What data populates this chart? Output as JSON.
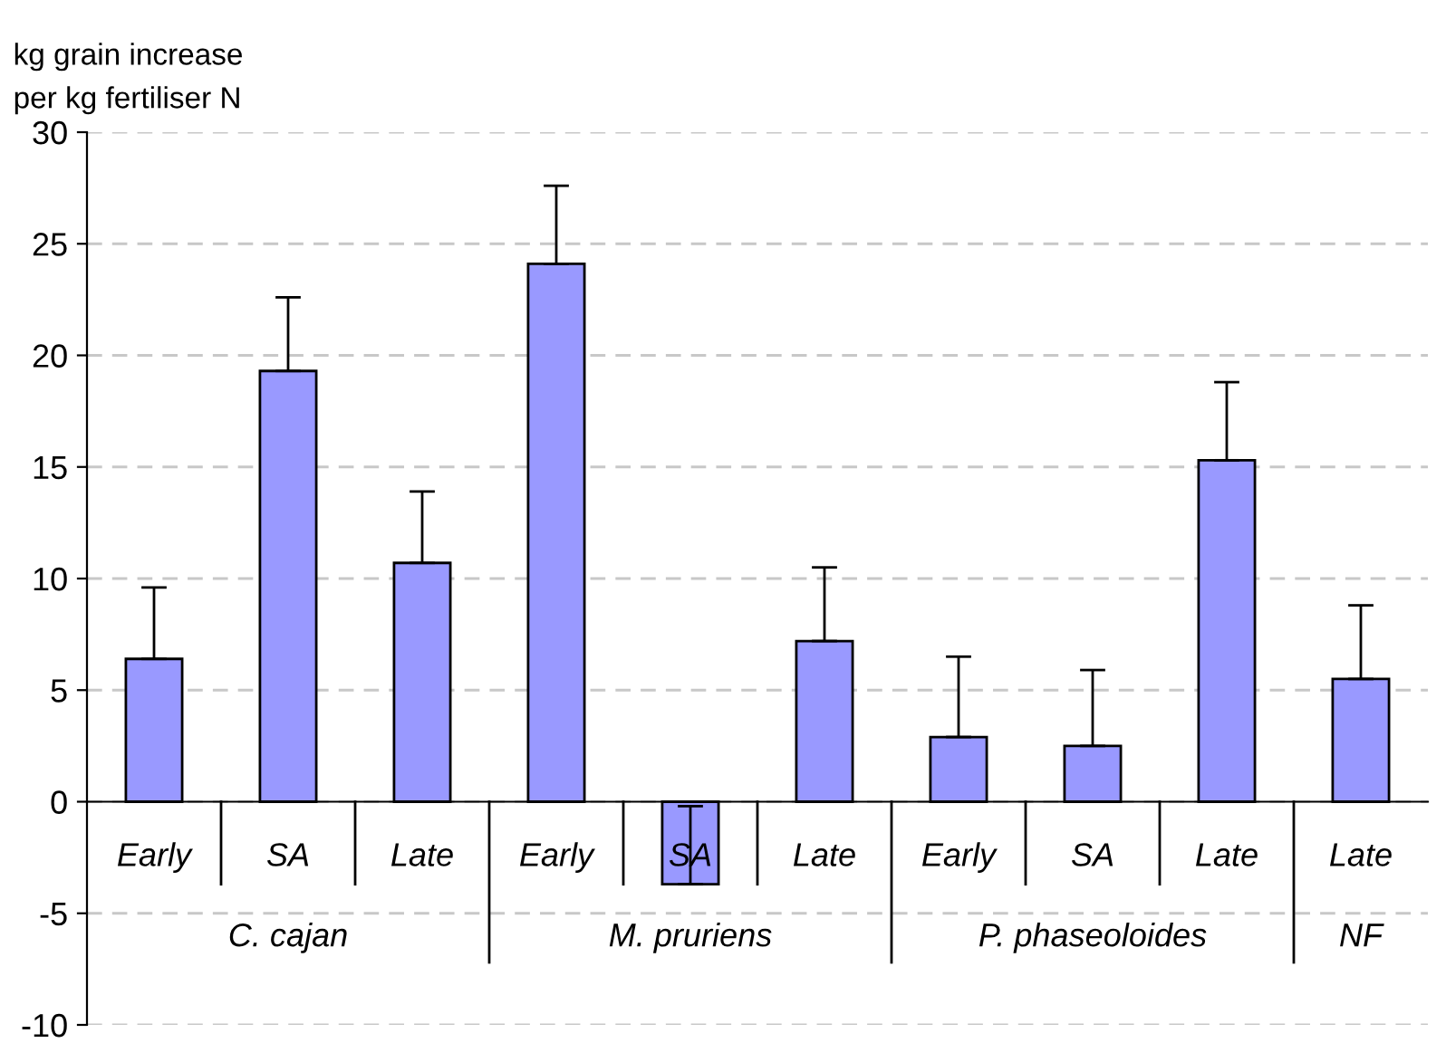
{
  "chart_data": {
    "type": "bar",
    "ylabel": "kg grain increase\nper kg fertiliser N",
    "categories": [
      "Early",
      "SA",
      "Late",
      "Early",
      "SA",
      "Late",
      "Early",
      "SA",
      "Late",
      "Late"
    ],
    "values": [
      6.4,
      19.3,
      10.7,
      24.1,
      -3.7,
      7.2,
      2.9,
      2.5,
      15.3,
      5.5
    ],
    "errors": [
      [
        6.4,
        9.6
      ],
      [
        19.3,
        22.6
      ],
      [
        10.7,
        13.9
      ],
      [
        24.1,
        27.6
      ],
      [
        -3.7,
        -0.2
      ],
      [
        7.2,
        10.5
      ],
      [
        2.9,
        6.5
      ],
      [
        2.5,
        5.9
      ],
      [
        15.3,
        18.8
      ],
      [
        5.5,
        8.8
      ]
    ],
    "color": "#9999ff",
    "ylim": [
      -10,
      30
    ],
    "yticks": [
      -10,
      -5,
      0,
      5,
      10,
      15,
      20,
      25,
      30
    ],
    "grid": "y",
    "annotations": [
      "C. cajan",
      "M. pruriens",
      "P. phaseoloides",
      "NF"
    ]
  }
}
